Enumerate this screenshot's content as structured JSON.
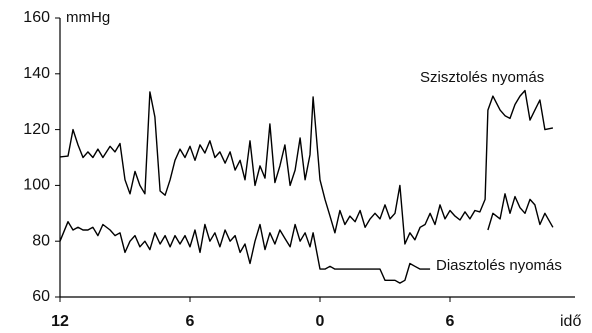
{
  "chart_data": {
    "type": "line",
    "y_label": "mmHg",
    "x_label": "idő",
    "x": [
      -12,
      -11.63,
      -11.4,
      -11.17,
      -10.94,
      -10.71,
      -10.48,
      -10.25,
      -10.02,
      -9.69,
      -9.46,
      -9.23,
      -9.0,
      -8.77,
      -8.54,
      -8.31,
      -8.08,
      -7.85,
      -7.62,
      -7.38,
      -7.15,
      -6.92,
      -6.69,
      -6.46,
      -6.23,
      -6.0,
      -5.77,
      -5.54,
      -5.31,
      -5.08,
      -4.85,
      -4.62,
      -4.38,
      -4.15,
      -3.92,
      -3.69,
      -3.46,
      -3.23,
      -3.0,
      -2.77,
      -2.54,
      -2.31,
      -2.08,
      -1.85,
      -1.62,
      -1.38,
      -1.15,
      -0.92,
      -0.69,
      -0.46,
      -0.32,
      0,
      0.23,
      0.46,
      0.69,
      0.92,
      1.15,
      1.38,
      1.62,
      1.85,
      2.08,
      2.31,
      2.54,
      2.77,
      3.0,
      3.23,
      3.46,
      3.69,
      3.92,
      4.15,
      4.38,
      4.62,
      4.85,
      5.08,
      5.31,
      5.54,
      5.77,
      6.0,
      6.23,
      6.46,
      6.69,
      6.92,
      7.15,
      7.38,
      7.62,
      7.75,
      7.98,
      8.31,
      8.54,
      8.77,
      9.0,
      9.23,
      9.46,
      9.69,
      9.92,
      10.15,
      10.38,
      10.75
    ],
    "series": [
      {
        "name": "Szisztolés nyomás",
        "color": "#000000",
        "values": [
          110.2,
          110.5,
          120,
          114.5,
          110,
          112,
          110,
          113,
          110,
          114,
          112,
          115,
          102,
          97,
          105,
          100,
          97,
          133.5,
          124.5,
          98,
          96.5,
          102,
          109,
          113,
          110,
          114,
          109,
          114.5,
          111.6,
          116,
          110,
          112,
          108,
          112,
          105.5,
          109,
          102,
          116,
          100,
          107,
          102.6,
          122,
          101,
          107,
          114.5,
          100,
          105.5,
          117,
          102,
          111,
          131.7,
          102,
          95,
          89,
          83,
          91,
          86,
          89,
          87,
          91,
          85,
          88,
          90,
          88,
          93,
          88,
          90,
          100,
          79,
          83,
          80.5,
          85,
          86,
          90,
          86,
          93,
          88,
          91,
          89,
          87.6,
          90.5,
          88,
          91,
          90.5,
          95,
          127,
          132,
          127,
          125,
          124,
          129,
          132,
          134,
          123.4,
          127,
          130.6,
          120,
          120.6
        ]
      },
      {
        "name": "Diasztolés nyomás",
        "color": "#000000",
        "values": [
          80,
          87,
          84,
          85,
          84,
          84,
          85,
          82,
          86,
          84,
          82,
          83,
          76,
          80,
          82,
          78,
          80,
          77,
          83,
          79,
          82,
          78,
          82,
          79,
          82,
          78,
          84,
          76,
          86,
          80,
          83,
          78,
          84,
          80,
          82,
          76,
          79,
          72,
          80,
          86,
          77,
          83,
          79,
          84,
          81,
          78,
          86,
          80,
          83,
          78,
          83,
          70,
          70,
          71,
          70,
          70,
          70,
          70,
          70,
          70,
          70,
          70,
          70,
          70,
          66,
          66,
          66,
          65,
          66,
          72,
          71,
          70,
          70,
          70,
          null,
          null,
          null,
          null,
          null,
          null,
          null,
          null,
          null,
          null,
          null,
          84,
          90,
          88,
          97,
          90,
          96,
          92,
          90,
          95,
          93,
          86,
          90,
          85
        ]
      }
    ],
    "xlim": [
      -12,
      12
    ],
    "xticks": [
      {
        "value": -12,
        "label": "12"
      },
      {
        "value": -6,
        "label": "6"
      },
      0,
      6
    ],
    "ylim": [
      60,
      160
    ],
    "yticks": [
      60,
      80,
      100,
      120,
      140,
      160
    ]
  }
}
